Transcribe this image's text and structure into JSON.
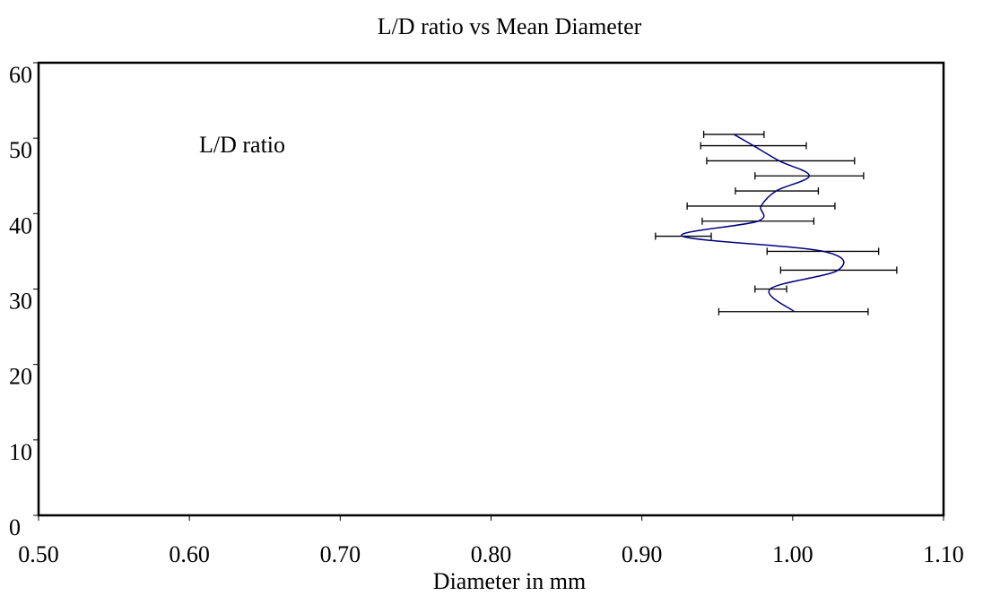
{
  "chart_data": {
    "type": "line",
    "title": "L/D ratio vs Mean Diameter",
    "xlabel": "Diameter in mm",
    "ylabel": "",
    "xlim": [
      0.5,
      1.1
    ],
    "ylim": [
      0,
      60
    ],
    "x_ticks": [
      "0.50",
      "0.60",
      "0.70",
      "0.80",
      "0.90",
      "1.00",
      "1.10"
    ],
    "y_ticks": [
      "0",
      "10",
      "20",
      "30",
      "40",
      "50",
      "60"
    ],
    "annotation": "L/D ratio",
    "grid": false,
    "series": [
      {
        "color": "#000080",
        "points": [
          {
            "y": 50.5,
            "x": 0.961,
            "xmin": 0.941,
            "xmax": 0.981
          },
          {
            "y": 49.0,
            "x": 0.974,
            "xmin": 0.939,
            "xmax": 1.009
          },
          {
            "y": 47.0,
            "x": 0.991,
            "xmin": 0.943,
            "xmax": 1.041
          },
          {
            "y": 45.0,
            "x": 1.011,
            "xmin": 0.975,
            "xmax": 1.047
          },
          {
            "y": 43.0,
            "x": 0.989,
            "xmin": 0.962,
            "xmax": 1.017
          },
          {
            "y": 41.0,
            "x": 0.979,
            "xmin": 0.93,
            "xmax": 1.028
          },
          {
            "y": 39.0,
            "x": 0.977,
            "xmin": 0.94,
            "xmax": 1.014
          },
          {
            "y": 37.0,
            "x": 0.927,
            "xmin": 0.909,
            "xmax": 0.946
          },
          {
            "y": 35.0,
            "x": 1.02,
            "xmin": 0.983,
            "xmax": 1.057
          },
          {
            "y": 32.5,
            "x": 1.03,
            "xmin": 0.992,
            "xmax": 1.069
          },
          {
            "y": 30.0,
            "x": 0.985,
            "xmin": 0.975,
            "xmax": 0.996
          },
          {
            "y": 27.0,
            "x": 1.001,
            "xmin": 0.951,
            "xmax": 1.05
          }
        ]
      }
    ]
  }
}
